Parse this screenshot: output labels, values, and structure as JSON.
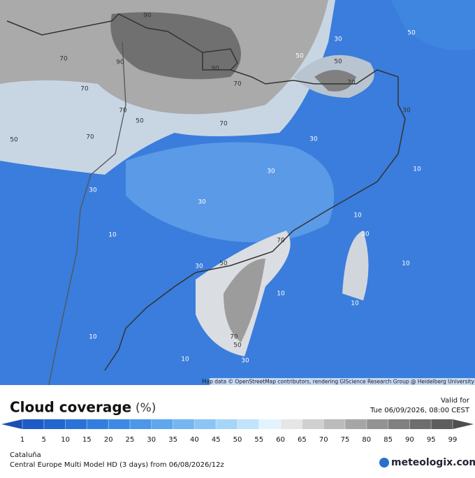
{
  "map": {
    "contour_labels": [
      90,
      70,
      90,
      70,
      90,
      70,
      70,
      50,
      70,
      70,
      50,
      30,
      50,
      50,
      50,
      70,
      30,
      30,
      10,
      30,
      30,
      30,
      10,
      10,
      30,
      70,
      50,
      30,
      10,
      10,
      10,
      10,
      70,
      50,
      10,
      30
    ],
    "attribution": "Map data © OpenStreetMap contributors, rendering GIScience Research Group @ Heidelberg University"
  },
  "header": {
    "title": "Cloud coverage",
    "unit": "(%)",
    "valid_label": "Valid for",
    "valid_time": "Tue 06/09/2026, 08:00 CEST"
  },
  "legend": {
    "ticks": [
      1,
      5,
      10,
      15,
      20,
      25,
      30,
      35,
      40,
      45,
      50,
      55,
      60,
      65,
      70,
      75,
      80,
      85,
      90,
      95,
      99
    ],
    "bar_colors": [
      "#1a4fb5",
      "#1e5bc6",
      "#2266d0",
      "#2a72d8",
      "#327ee0",
      "#3d8ae6",
      "#4c97ea",
      "#5ea6ee",
      "#74b6f2",
      "#8cc5f5",
      "#a6d5f8",
      "#c2e4fb",
      "#e2f3fd",
      "#e6e6e6",
      "#d0d0d0",
      "#bbbbbb",
      "#a6a6a6",
      "#939393",
      "#808080",
      "#6e6e6e",
      "#5e5e5e",
      "#4e4e4e"
    ]
  },
  "footer": {
    "region": "Cataluña",
    "model": "Central Europe Multi Model HD (3 days) from  06/08/2026/12z",
    "brand": "meteologix.com"
  }
}
